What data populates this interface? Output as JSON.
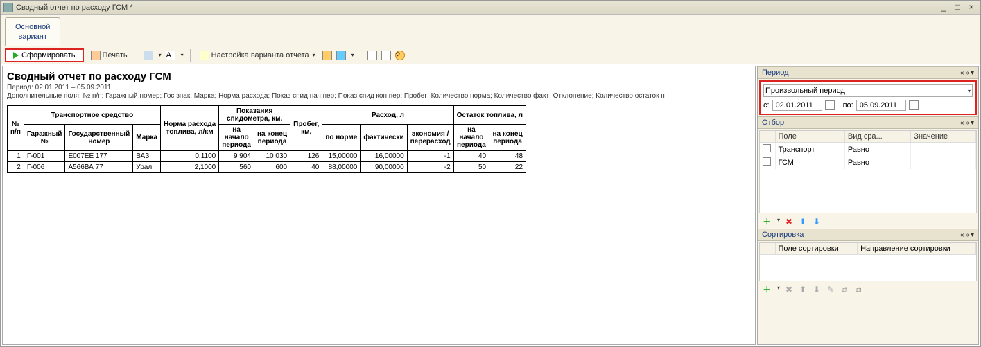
{
  "window": {
    "title": "Сводный отчет по расходу ГСМ *"
  },
  "tabs": {
    "main": "Основной\nвариант"
  },
  "toolbar": {
    "form": "Сформировать",
    "print": "Печать",
    "settings": "Настройка варианта отчета"
  },
  "report": {
    "title": "Сводный отчет по расходу ГСМ",
    "period_line": "Период: 02.01.2011 – 05.09.2011",
    "fields_line": "Дополнительные поля: № п/п; Гаражный номер; Гос знак; Марка; Норма расхода; Показ спид нач пер; Показ спид кон пер; Пробег; Количество норма; Количество факт; Отклонение; Количество остаток н",
    "headers": {
      "npp": "№\nп/п",
      "vehicle": "Транспортное средство",
      "garage": "Гаражный\n№",
      "gos": "Государственный\nномер",
      "marka": "Марка",
      "norma": "Норма расхода\nтоплива, л/км",
      "odo": "Показания\nспидометра, км.",
      "odo_start": "на\nначало\nпериода",
      "odo_end": "на конец\nпериода",
      "probeg": "Пробег,\nкм.",
      "rashod": "Расход, л",
      "po_norme": "по норме",
      "fakt": "фактически",
      "econ": "экономия /\nперерасход",
      "ostatok": "Остаток топлива, л",
      "ost_start": "на\nначало\nпериода",
      "ost_end": "на конец\nпериода"
    },
    "rows": [
      {
        "n": "1",
        "garage": "Г-001",
        "gos": "Е007ЕЕ 177",
        "marka": "ВАЗ",
        "norma": "0,1100",
        "odo_s": "9 904",
        "odo_e": "10 030",
        "probeg": "126",
        "norm": "15,00000",
        "fakt": "16,00000",
        "econ": "-1",
        "ost_s": "40",
        "ost_e": "48"
      },
      {
        "n": "2",
        "garage": "Г-006",
        "gos": "А566ВА 77",
        "marka": "Урал",
        "norma": "2,1000",
        "odo_s": "560",
        "odo_e": "600",
        "probeg": "40",
        "norm": "88,00000",
        "fakt": "90,00000",
        "econ": "-2",
        "ost_s": "50",
        "ost_e": "22"
      }
    ]
  },
  "period_panel": {
    "title": "Период",
    "type": "Произвольный период",
    "from_label": "с:",
    "to_label": "по:",
    "from": "02.01.2011",
    "to": "05.09.2011"
  },
  "filter_panel": {
    "title": "Отбор",
    "columns": {
      "field": "Поле",
      "cmp": "Вид сра...",
      "val": "Значение"
    },
    "rows": [
      {
        "checked": false,
        "field": "Транспорт",
        "cmp": "Равно",
        "val": ""
      },
      {
        "checked": false,
        "field": "ГСМ",
        "cmp": "Равно",
        "val": ""
      }
    ]
  },
  "sort_panel": {
    "title": "Сортировка",
    "columns": {
      "field": "Поле сортировки",
      "dir": "Направление сортировки"
    }
  },
  "colors": {
    "highlight": "#d22222",
    "link": "#1a3b7c",
    "panel_bg": "#f8f5e8"
  }
}
